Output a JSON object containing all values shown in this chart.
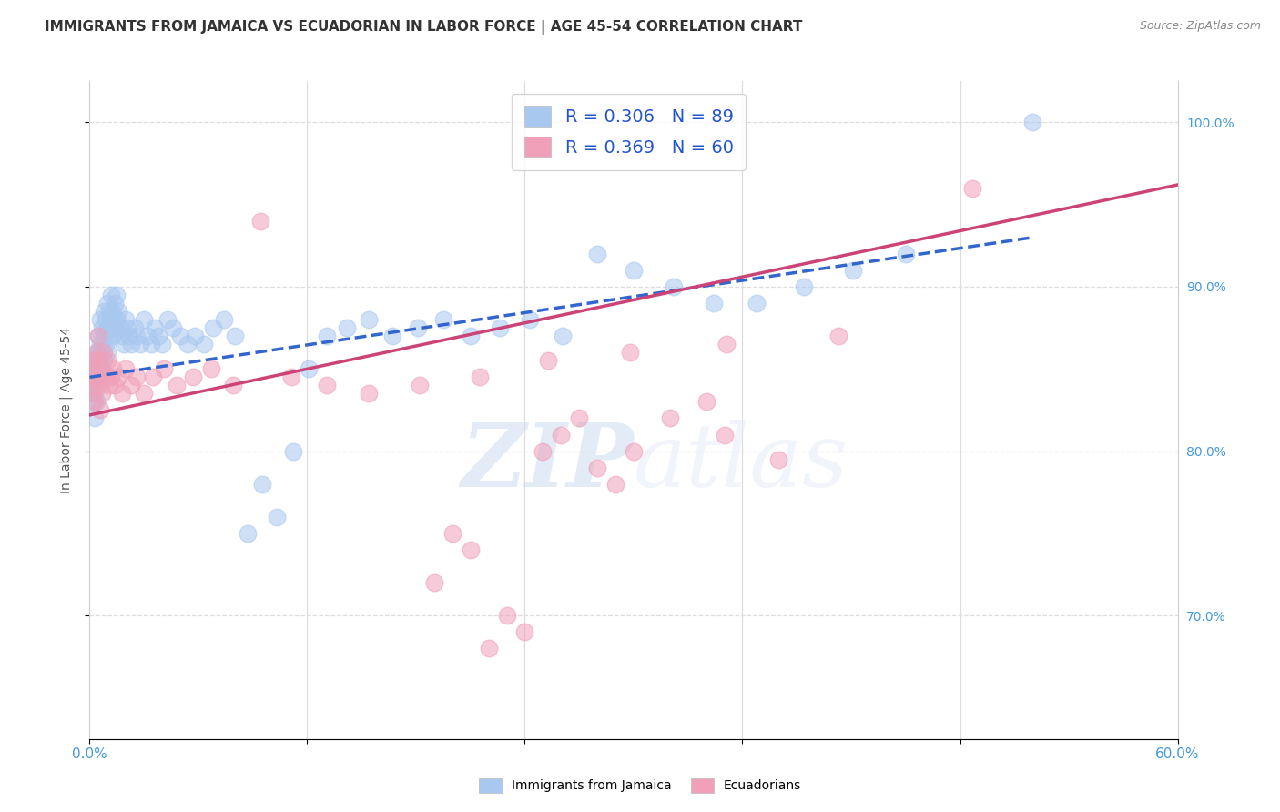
{
  "title": "IMMIGRANTS FROM JAMAICA VS ECUADORIAN IN LABOR FORCE | AGE 45-54 CORRELATION CHART",
  "source": "Source: ZipAtlas.com",
  "ylabel": "In Labor Force | Age 45-54",
  "watermark_zip": "ZIP",
  "watermark_atlas": "atlas",
  "xmin": 0.0,
  "xmax": 0.6,
  "ymin": 0.625,
  "ymax": 1.025,
  "blue_color": "#A8C8F0",
  "pink_color": "#F0A0B8",
  "blue_line_color": "#3366CC",
  "pink_line_color": "#CC4477",
  "right_axis_color": "#4499DD",
  "grid_color": "#DDDDDD",
  "background_color": "#FFFFFF",
  "legend_label_blue": "R = 0.306   N = 89",
  "legend_label_pink": "R = 0.369   N = 60",
  "bottom_label_blue": "Immigrants from Jamaica",
  "bottom_label_pink": "Ecuadorians",
  "blue_trend": [
    0.0,
    0.52,
    0.845,
    0.93
  ],
  "pink_trend": [
    0.0,
    0.6,
    0.822,
    0.962
  ],
  "jamaica_x": [
    0.001,
    0.001,
    0.002,
    0.002,
    0.002,
    0.003,
    0.003,
    0.003,
    0.004,
    0.004,
    0.004,
    0.004,
    0.005,
    0.005,
    0.005,
    0.006,
    0.006,
    0.006,
    0.007,
    0.007,
    0.007,
    0.008,
    0.008,
    0.008,
    0.009,
    0.009,
    0.01,
    0.01,
    0.01,
    0.011,
    0.011,
    0.012,
    0.012,
    0.013,
    0.013,
    0.014,
    0.014,
    0.015,
    0.015,
    0.016,
    0.017,
    0.018,
    0.019,
    0.02,
    0.021,
    0.022,
    0.023,
    0.025,
    0.026,
    0.028,
    0.03,
    0.032,
    0.034,
    0.036,
    0.038,
    0.04,
    0.043,
    0.046,
    0.05,
    0.054,
    0.058,
    0.063,
    0.068,
    0.074,
    0.08,
    0.087,
    0.095,
    0.103,
    0.112,
    0.121,
    0.131,
    0.142,
    0.154,
    0.167,
    0.181,
    0.195,
    0.21,
    0.226,
    0.243,
    0.261,
    0.28,
    0.3,
    0.322,
    0.344,
    0.368,
    0.394,
    0.421,
    0.45,
    0.52
  ],
  "jamaica_y": [
    0.85,
    0.84,
    0.855,
    0.84,
    0.83,
    0.845,
    0.835,
    0.82,
    0.86,
    0.85,
    0.84,
    0.83,
    0.87,
    0.86,
    0.845,
    0.88,
    0.865,
    0.85,
    0.875,
    0.86,
    0.845,
    0.885,
    0.87,
    0.855,
    0.88,
    0.865,
    0.89,
    0.875,
    0.86,
    0.885,
    0.87,
    0.895,
    0.88,
    0.885,
    0.87,
    0.89,
    0.875,
    0.895,
    0.88,
    0.885,
    0.875,
    0.87,
    0.865,
    0.88,
    0.875,
    0.87,
    0.865,
    0.875,
    0.87,
    0.865,
    0.88,
    0.87,
    0.865,
    0.875,
    0.87,
    0.865,
    0.88,
    0.875,
    0.87,
    0.865,
    0.87,
    0.865,
    0.875,
    0.88,
    0.87,
    0.75,
    0.78,
    0.76,
    0.8,
    0.85,
    0.87,
    0.875,
    0.88,
    0.87,
    0.875,
    0.88,
    0.87,
    0.875,
    0.88,
    0.87,
    0.92,
    0.91,
    0.9,
    0.89,
    0.89,
    0.9,
    0.91,
    0.92,
    1.0
  ],
  "ecuador_x": [
    0.001,
    0.001,
    0.002,
    0.002,
    0.003,
    0.003,
    0.004,
    0.004,
    0.005,
    0.005,
    0.006,
    0.006,
    0.007,
    0.007,
    0.008,
    0.009,
    0.01,
    0.011,
    0.012,
    0.013,
    0.014,
    0.016,
    0.018,
    0.02,
    0.023,
    0.026,
    0.03,
    0.035,
    0.041,
    0.048,
    0.057,
    0.067,
    0.079,
    0.094,
    0.111,
    0.131,
    0.154,
    0.182,
    0.215,
    0.253,
    0.298,
    0.351,
    0.413,
    0.487,
    0.3,
    0.35,
    0.38,
    0.19,
    0.2,
    0.21,
    0.22,
    0.23,
    0.24,
    0.25,
    0.26,
    0.27,
    0.28,
    0.29,
    0.32,
    0.34
  ],
  "ecuador_y": [
    0.85,
    0.84,
    0.855,
    0.835,
    0.845,
    0.83,
    0.86,
    0.845,
    0.87,
    0.855,
    0.84,
    0.825,
    0.85,
    0.835,
    0.86,
    0.845,
    0.855,
    0.84,
    0.845,
    0.85,
    0.84,
    0.845,
    0.835,
    0.85,
    0.84,
    0.845,
    0.835,
    0.845,
    0.85,
    0.84,
    0.845,
    0.85,
    0.84,
    0.94,
    0.845,
    0.84,
    0.835,
    0.84,
    0.845,
    0.855,
    0.86,
    0.865,
    0.87,
    0.96,
    0.8,
    0.81,
    0.795,
    0.72,
    0.75,
    0.74,
    0.68,
    0.7,
    0.69,
    0.8,
    0.81,
    0.82,
    0.79,
    0.78,
    0.82,
    0.83
  ]
}
